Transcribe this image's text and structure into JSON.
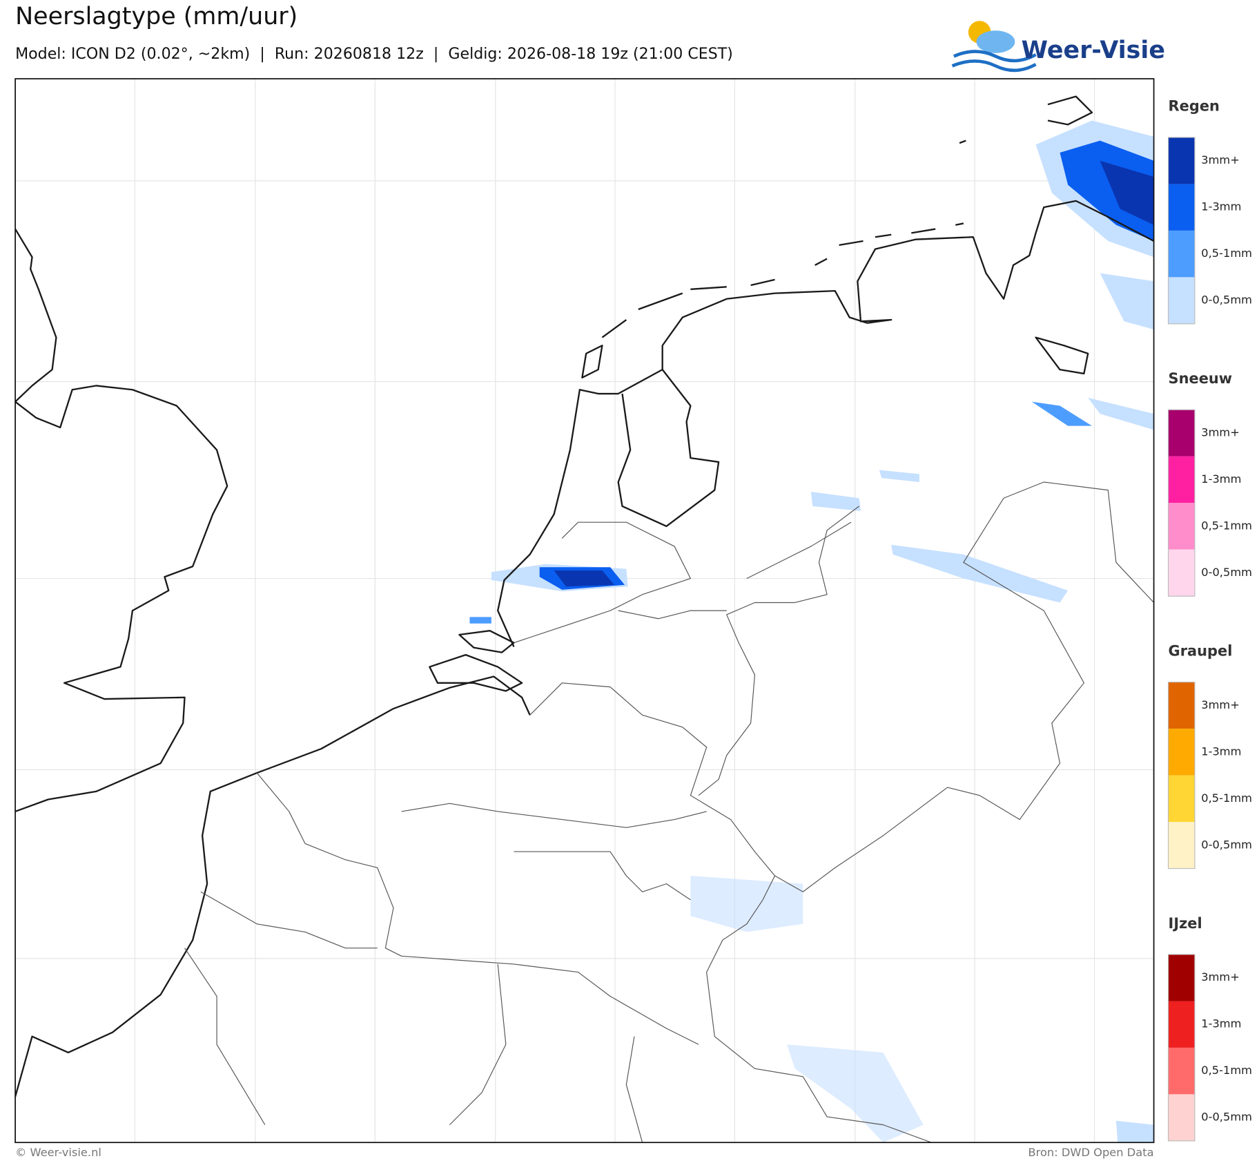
{
  "header": {
    "title": "Neerslagtype (mm/uur)",
    "subtitle": "Model: ICON D2 (0.02°, ~2km)  |  Run: 20260818 12z  |  Geldig: 2026-08-18 19z (21:00 CEST)",
    "logo": "Weer-Visie"
  },
  "legend": [
    {
      "title": "Regen",
      "items": [
        {
          "label": "3mm+",
          "color": "#0a35b0"
        },
        {
          "label": "1-3mm",
          "color": "#0a5ef0"
        },
        {
          "label": "0,5-1mm",
          "color": "#4d9dff"
        },
        {
          "label": "0-0,5mm",
          "color": "#c6e0ff"
        }
      ]
    },
    {
      "title": "Sneeuw",
      "items": [
        {
          "label": "3mm+",
          "color": "#a8006c"
        },
        {
          "label": "1-3mm",
          "color": "#ff20a2"
        },
        {
          "label": "0,5-1mm",
          "color": "#ff8dcb"
        },
        {
          "label": "0-0,5mm",
          "color": "#ffd6ec"
        }
      ]
    },
    {
      "title": "Graupel",
      "items": [
        {
          "label": "3mm+",
          "color": "#e06500"
        },
        {
          "label": "1-3mm",
          "color": "#ffaa00"
        },
        {
          "label": "0,5-1mm",
          "color": "#ffd633"
        },
        {
          "label": "0-0,5mm",
          "color": "#fff2c6"
        }
      ]
    },
    {
      "title": "IJzel",
      "items": [
        {
          "label": "3mm+",
          "color": "#a00000"
        },
        {
          "label": "1-3mm",
          "color": "#ee2020"
        },
        {
          "label": "0,5-1mm",
          "color": "#ff6b6b"
        },
        {
          "label": "0-0,5mm",
          "color": "#ffd2d2"
        }
      ]
    }
  ],
  "footer": {
    "left": "© Weer-visie.nl",
    "right": "Bron: DWD Open Data"
  }
}
